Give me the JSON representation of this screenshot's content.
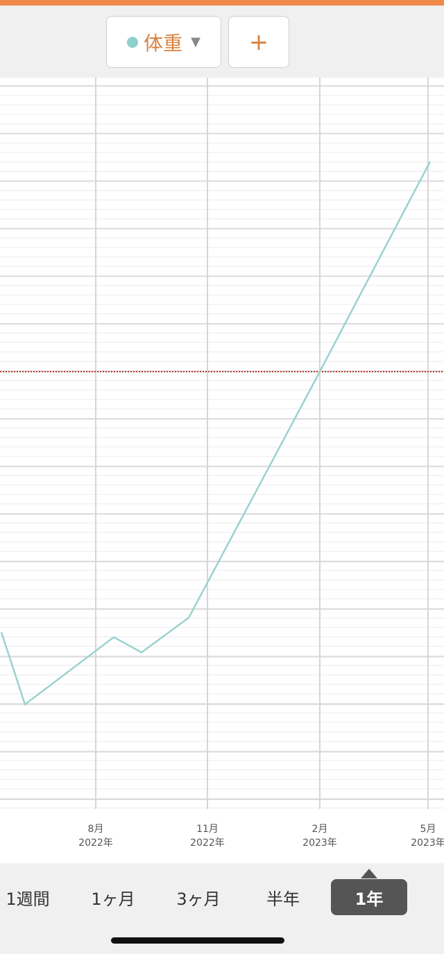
{
  "header": {
    "selector_label": "体重",
    "add_button": "+"
  },
  "x_labels": [
    {
      "month": "8月",
      "year": "2022年"
    },
    {
      "month": "11月",
      "year": "2022年"
    },
    {
      "month": "2月",
      "year": "2023年"
    },
    {
      "month": "5月",
      "year": "2023年"
    }
  ],
  "tabs": [
    "1週間",
    "1ヶ月",
    "3ヶ月",
    "半年",
    "1年"
  ],
  "selected_tab": "1年"
}
